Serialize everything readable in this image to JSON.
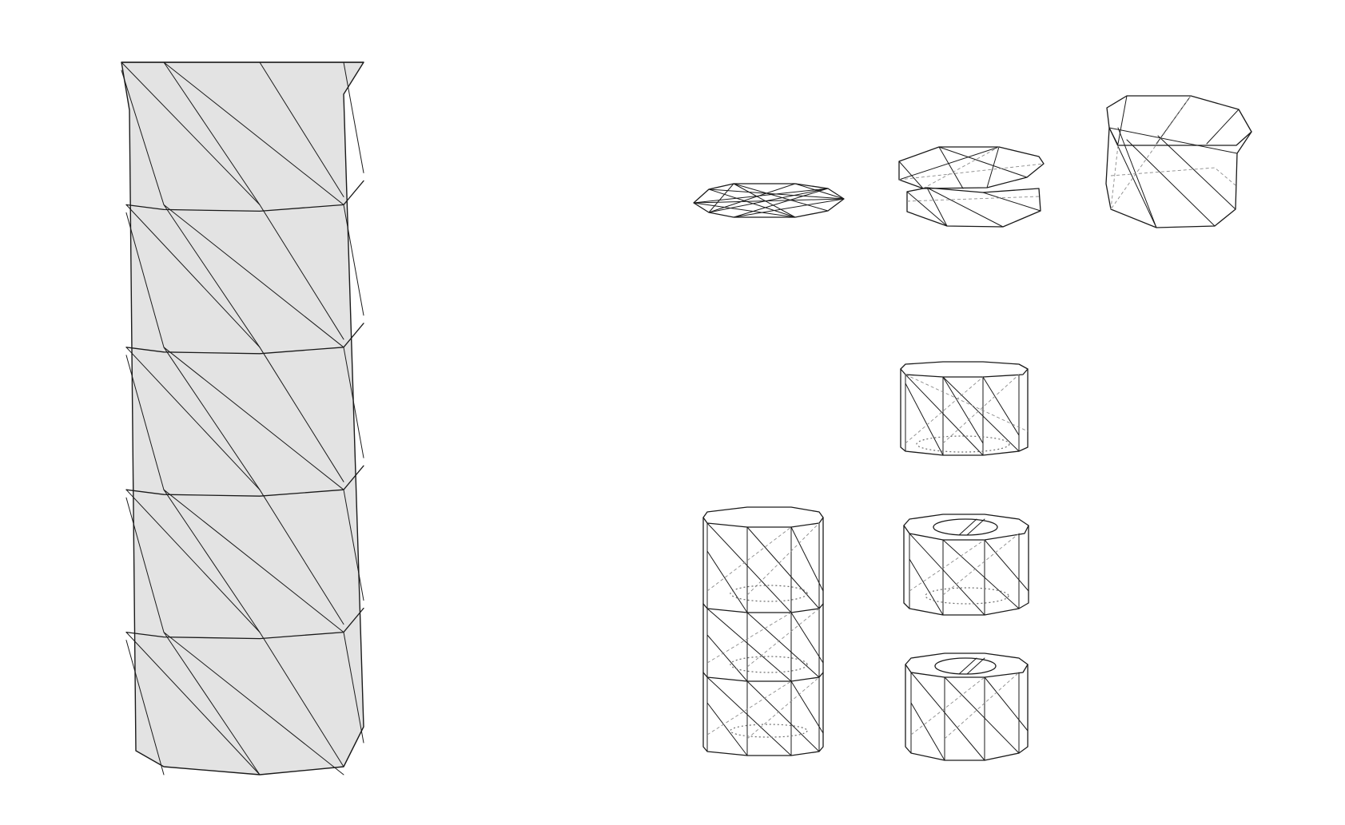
{
  "figure": {
    "background": "#ffffff",
    "line_color": "#1a1a1a",
    "fill_color": "#e3e3e3",
    "hidden_line_color": "#8a8a8a",
    "panels": [
      {
        "id": "stacked-tower",
        "kind": "shaded twisted origami tower",
        "modules": 5
      },
      {
        "id": "folded-flat",
        "kind": "flat-folded module"
      },
      {
        "id": "partially-folded",
        "kind": "partially deployed module"
      },
      {
        "id": "nearly-deployed",
        "kind": "nearly deployed module"
      },
      {
        "id": "deployed-module",
        "kind": "deployed module wireframe"
      },
      {
        "id": "three-module-stack",
        "kind": "three stacked modules wireframe",
        "modules": 3
      },
      {
        "id": "module-with-core",
        "kind": "module with inner ring"
      },
      {
        "id": "short-module-with-core",
        "kind": "short module with inner ring"
      }
    ]
  }
}
